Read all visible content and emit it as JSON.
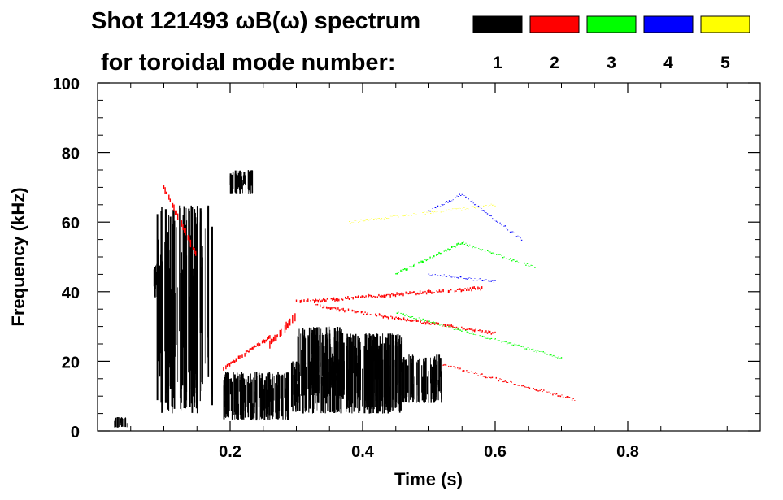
{
  "chart_data": {
    "type": "heatmap",
    "title_line1": "Shot 121493 ωB(ω) spectrum",
    "title_line2": "for toroidal mode number:",
    "xlabel": "Time (s)",
    "ylabel": "Frequency (kHz)",
    "xlim": [
      0.0,
      1.0
    ],
    "ylim": [
      0,
      100
    ],
    "xticks": [
      0.2,
      0.4,
      0.6,
      0.8
    ],
    "xtick_labels": [
      "0.2",
      "0.4",
      "0.6",
      "0.8"
    ],
    "yticks": [
      0,
      20,
      40,
      60,
      80,
      100
    ],
    "ytick_labels": [
      "0",
      "20",
      "40",
      "60",
      "80",
      "100"
    ],
    "grid": false,
    "legend": {
      "placement": "top-right",
      "entries": [
        {
          "label": "1",
          "color": "#000000"
        },
        {
          "label": "2",
          "color": "#ff0000"
        },
        {
          "label": "3",
          "color": "#00ff00"
        },
        {
          "label": "4",
          "color": "#0000ff"
        },
        {
          "label": "5",
          "color": "#ffff00"
        }
      ]
    },
    "series": [
      {
        "mode": 1,
        "color": "#000000",
        "regions": [
          {
            "t0": 0.088,
            "t1": 0.175,
            "f0": 5,
            "f1": 65,
            "density": 0.55
          },
          {
            "t0": 0.085,
            "t1": 0.095,
            "f0": 38,
            "f1": 48,
            "density": 0.9
          },
          {
            "t0": 0.19,
            "t1": 0.29,
            "f0": 3,
            "f1": 17,
            "density": 0.8
          },
          {
            "t0": 0.29,
            "t1": 0.37,
            "f0": 5,
            "f1": 20,
            "density": 0.6
          },
          {
            "t0": 0.3,
            "t1": 0.37,
            "f0": 10,
            "f1": 30,
            "density": 0.75
          },
          {
            "t0": 0.37,
            "t1": 0.46,
            "f0": 5,
            "f1": 28,
            "density": 0.85
          },
          {
            "t0": 0.46,
            "t1": 0.52,
            "f0": 8,
            "f1": 22,
            "density": 0.55
          },
          {
            "t0": 0.2,
            "t1": 0.235,
            "f0": 68,
            "f1": 75,
            "density": 0.6
          },
          {
            "t0": 0.025,
            "t1": 0.045,
            "f0": 1,
            "f1": 4,
            "density": 0.5
          }
        ]
      },
      {
        "mode": 2,
        "color": "#ff0000",
        "segments": [
          {
            "t0": 0.1,
            "t1": 0.15,
            "f0": 70,
            "f1": 50,
            "width": 8
          },
          {
            "t0": 0.19,
            "t1": 0.26,
            "f0": 18,
            "f1": 27,
            "width": 4
          },
          {
            "t0": 0.26,
            "t1": 0.3,
            "f0": 25,
            "f1": 33,
            "width": 8
          },
          {
            "t0": 0.3,
            "t1": 0.58,
            "f0": 37,
            "f1": 41,
            "width": 3
          },
          {
            "t0": 0.33,
            "t1": 0.6,
            "f0": 36,
            "f1": 28,
            "width": 2.5
          },
          {
            "t0": 0.52,
            "t1": 0.72,
            "f0": 19,
            "f1": 9,
            "width": 1.5
          }
        ]
      },
      {
        "mode": 3,
        "color": "#00ff00",
        "segments": [
          {
            "t0": 0.45,
            "t1": 0.55,
            "f0": 45,
            "f1": 54,
            "width": 2
          },
          {
            "t0": 0.55,
            "t1": 0.66,
            "f0": 54,
            "f1": 47,
            "width": 1.2
          },
          {
            "t0": 0.45,
            "t1": 0.7,
            "f0": 34,
            "f1": 21,
            "width": 1.2
          }
        ]
      },
      {
        "mode": 4,
        "color": "#0000ff",
        "segments": [
          {
            "t0": 0.5,
            "t1": 0.55,
            "f0": 63,
            "f1": 68,
            "width": 1.2
          },
          {
            "t0": 0.55,
            "t1": 0.64,
            "f0": 68,
            "f1": 55,
            "width": 1
          },
          {
            "t0": 0.5,
            "t1": 0.6,
            "f0": 45,
            "f1": 43,
            "width": 1
          }
        ]
      },
      {
        "mode": 5,
        "color": "#ffff00",
        "segments": [
          {
            "t0": 0.38,
            "t1": 0.6,
            "f0": 60,
            "f1": 65,
            "width": 0.6
          }
        ]
      }
    ]
  }
}
